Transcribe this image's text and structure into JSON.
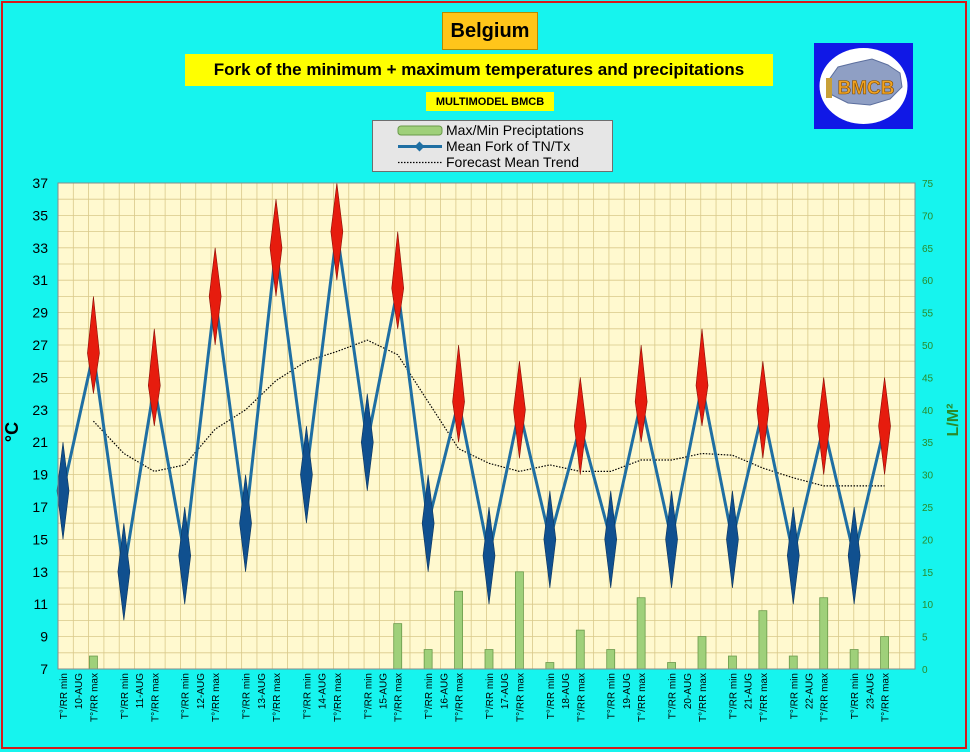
{
  "title": "Belgium",
  "subtitle": "Fork of the minimum + maximum temperatures and precipitations",
  "source": "MULTIMODEL BMCB",
  "logo_text": "BMCB",
  "legend": [
    {
      "label": "Max/Min Preciptations",
      "key": "precip"
    },
    {
      "label": "Mean Fork of TN/Tx",
      "key": "mean"
    },
    {
      "label": "Forecast Mean Trend",
      "key": "trend"
    }
  ],
  "colors": {
    "background": "#16f4ee",
    "plot_area": "#fff9cf",
    "grid": "#d9c98a",
    "mean_line": "#1f6fa3",
    "max_diamond": "#e61c0e",
    "min_diamond": "#10508f",
    "precip_bar": "#9fd07a",
    "trend_line": "#000000",
    "right_axis_text": "#2a8a2a"
  },
  "chart_data": {
    "type": "line",
    "title": "Fork of the minimum + maximum temperatures and precipitations",
    "ylabel": "°C",
    "y2label": "L/M²",
    "ylim": [
      7,
      37
    ],
    "y_ticks": [
      7,
      9,
      11,
      13,
      15,
      17,
      19,
      21,
      23,
      25,
      27,
      29,
      31,
      33,
      35,
      37
    ],
    "y2lim": [
      0,
      75
    ],
    "y2_ticks": [
      0,
      5,
      10,
      15,
      20,
      25,
      30,
      35,
      40,
      45,
      50,
      55,
      60,
      65,
      70,
      75
    ],
    "grid": true,
    "legend_position": "top-center",
    "categories": [
      "T°/RR min",
      "T°/RR max",
      "T°/RR min",
      "T°/RR max",
      "T°/RR min",
      "T°/RR max",
      "T°/RR min",
      "T°/RR max",
      "T°/RR min",
      "T°/RR max",
      "T°/RR min",
      "T°/RR max",
      "T°/RR min",
      "T°/RR max",
      "T°/RR min",
      "T°/RR max",
      "T°/RR min",
      "T°/RR max",
      "T°/RR min",
      "T°/RR max",
      "T°/RR min",
      "T°/RR max",
      "T°/RR min",
      "T°/RR max",
      "T°/RR min",
      "T°/RR max",
      "T°/RR min",
      "T°/RR max"
    ],
    "dates": [
      "10-AUG",
      "11-AUG",
      "12-AUG",
      "13-AUG",
      "14-AUG",
      "15-AUG",
      "16-AUG",
      "17-AUG",
      "18-AUG",
      "19-AUG",
      "20-AUG",
      "21-AUG",
      "22-AUG",
      "23-AUG"
    ],
    "series": [
      {
        "name": "Mean Fork of TN/Tx",
        "values": [
          18,
          26.5,
          13,
          24.5,
          14,
          30,
          16,
          33,
          19,
          34,
          21,
          30.5,
          16,
          23.5,
          14,
          23,
          15,
          22,
          15,
          23.5,
          15,
          24.5,
          15,
          23,
          14,
          22,
          14,
          22
        ]
      },
      {
        "name": "Tmax range",
        "values": [
          21,
          30,
          16,
          28,
          17,
          33,
          19,
          36,
          22,
          37,
          24,
          34,
          19,
          27,
          17,
          26,
          18,
          25,
          18,
          27,
          18,
          28,
          18,
          26,
          17,
          25,
          17,
          25
        ]
      },
      {
        "name": "Tmin range",
        "values": [
          15,
          24,
          10,
          22,
          11,
          27,
          13,
          30,
          16,
          31,
          18,
          28,
          13,
          21,
          11,
          20,
          12,
          19,
          12,
          21,
          12,
          22,
          12,
          20,
          11,
          19,
          11,
          19
        ]
      },
      {
        "name": "Forecast Mean Trend",
        "values": [
          null,
          22.3,
          20.3,
          19.2,
          19.6,
          21.8,
          23,
          24.8,
          26,
          26.6,
          27.3,
          26.4,
          23.5,
          20.6,
          19.7,
          19.2,
          19.6,
          19.2,
          19.2,
          19.9,
          19.9,
          20.3,
          20.2,
          19.4,
          18.8,
          18.3,
          18.3,
          18.3
        ]
      },
      {
        "name": "Max/Min Preciptations",
        "values": [
          0,
          2,
          0,
          0,
          0,
          0,
          0,
          0,
          0,
          0,
          0,
          7,
          3,
          12,
          3,
          15,
          1,
          6,
          3,
          11,
          1,
          5,
          2,
          9,
          2,
          11,
          3,
          5
        ]
      }
    ]
  }
}
